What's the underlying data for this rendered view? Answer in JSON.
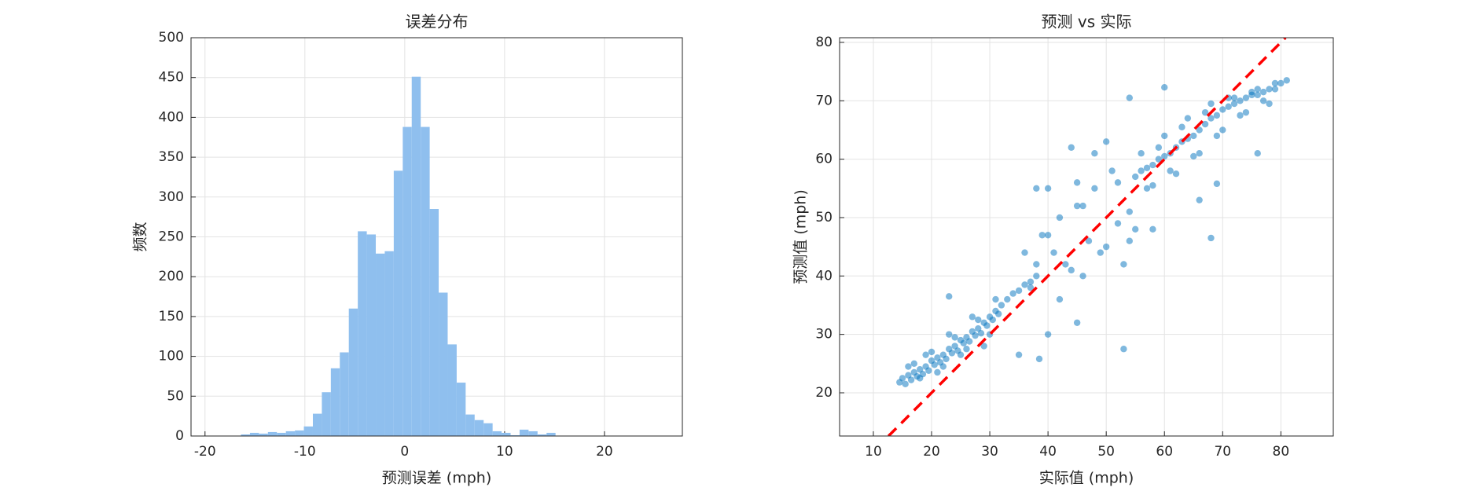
{
  "chart_data": [
    {
      "type": "histogram",
      "title": "误差分布",
      "x_label": "预测误差 (mph)",
      "y_label": "频数",
      "bins": [
        -16.4,
        -15.5,
        -14.6,
        -13.7,
        -12.8,
        -11.9,
        -11.0,
        -10.1,
        -9.2,
        -8.3,
        -7.4,
        -6.5,
        -5.6,
        -4.7,
        -3.8,
        -2.9,
        -2.0,
        -1.1,
        -0.2,
        0.7,
        1.6,
        2.5,
        3.4,
        4.3,
        5.2,
        6.1,
        7.0,
        7.9,
        8.8,
        9.7,
        10.6,
        11.5,
        12.4,
        13.3,
        14.2,
        15.1,
        16.0
      ],
      "values": [
        2,
        4,
        3,
        5,
        4,
        6,
        7,
        12,
        28,
        55,
        85,
        105,
        160,
        257,
        253,
        229,
        232,
        333,
        388,
        451,
        388,
        285,
        180,
        115,
        67,
        27,
        20,
        16,
        6,
        4,
        1,
        8,
        6,
        2,
        4,
        0
      ],
      "color": "#8fbfee",
      "xlim": [
        -21.4,
        27.8
      ],
      "xticks": [
        -20,
        -10,
        0,
        10,
        20
      ],
      "ylim": [
        0,
        500
      ],
      "yticks": [
        0,
        50,
        100,
        150,
        200,
        250,
        300,
        350,
        400,
        450,
        500
      ],
      "grid": true
    },
    {
      "type": "scatter",
      "title": "预测 vs 实际",
      "x_label": "实际值 (mph)",
      "y_label": "预测值 (mph)",
      "x": [
        14.5,
        15,
        15.5,
        16,
        16.5,
        17,
        17.5,
        18,
        18.5,
        19,
        19.5,
        20,
        20.5,
        21,
        21.5,
        22,
        22.5,
        23,
        23.5,
        24,
        24.5,
        25,
        25.5,
        26,
        26.5,
        27,
        27.5,
        28,
        28.5,
        29,
        29.5,
        30,
        30.5,
        31,
        31.5,
        32,
        33,
        34,
        35,
        36,
        37,
        38,
        16,
        18,
        20,
        22,
        24,
        26,
        28,
        30,
        17,
        19,
        21,
        23,
        25,
        27,
        29,
        31,
        23,
        38.5,
        53,
        45,
        40,
        35,
        36,
        38,
        40,
        42,
        44,
        46,
        48,
        50,
        52,
        54,
        37,
        39,
        41,
        43,
        45,
        47,
        49,
        51,
        53,
        55,
        40,
        44,
        48,
        52,
        38,
        42,
        46,
        50,
        54,
        45,
        55,
        56,
        57,
        58,
        59,
        60,
        61,
        62,
        63,
        64,
        65,
        66,
        67,
        68,
        69,
        70,
        71,
        72,
        73,
        74,
        75,
        76,
        77,
        78,
        79,
        80,
        81,
        56,
        58,
        60,
        62,
        64,
        66,
        68,
        70,
        72,
        74,
        76,
        78,
        57,
        59,
        61,
        63,
        65,
        67,
        69,
        71,
        73,
        75,
        77,
        79,
        54,
        60,
        69,
        68,
        76,
        58,
        66
      ],
      "y": [
        21.8,
        22.5,
        21.5,
        23,
        22.2,
        23.5,
        22.8,
        24,
        23.2,
        24.5,
        23.8,
        25.5,
        24.8,
        26,
        25.2,
        26.5,
        25.8,
        27.5,
        26.8,
        28,
        27.2,
        29,
        28.5,
        29.5,
        28.8,
        30.5,
        29.8,
        31,
        30.2,
        32,
        31.5,
        33,
        32.5,
        34,
        33.5,
        35,
        36,
        37,
        37.5,
        38.5,
        39,
        40,
        24.5,
        22.5,
        27,
        24.5,
        29.5,
        27.5,
        32.5,
        30,
        25,
        26.5,
        23.5,
        30,
        26.5,
        33,
        28,
        36,
        36.5,
        25.8,
        27.5,
        32,
        30,
        26.5,
        44,
        42,
        47,
        50,
        41,
        52,
        55,
        45,
        56,
        51,
        38,
        47,
        44,
        42,
        52,
        46,
        44,
        58,
        42,
        48,
        55,
        62,
        61,
        49,
        55,
        36,
        40,
        63,
        46,
        56,
        57,
        58,
        58.5,
        59,
        60,
        60.5,
        61,
        62,
        63,
        63.5,
        64,
        65,
        66,
        67,
        67.5,
        68.5,
        69,
        69.5,
        70,
        70.5,
        71,
        71,
        71.5,
        72,
        72,
        73,
        73.5,
        61,
        55.5,
        64,
        57.5,
        67,
        61,
        69.5,
        65,
        70.5,
        68,
        72,
        69.5,
        55,
        62,
        58,
        65.5,
        60.5,
        68,
        64,
        70.5,
        67.5,
        71.5,
        70,
        73,
        70.5,
        72.3,
        55.8,
        46.5,
        61,
        48,
        53
      ],
      "color": "#0072bd",
      "identity_line": true,
      "identity_color": "#ff0000",
      "xlim": [
        4.2,
        89
      ],
      "xticks": [
        10,
        20,
        30,
        40,
        50,
        60,
        70,
        80
      ],
      "ylim": [
        12.6,
        80.8
      ],
      "yticks": [
        20,
        30,
        40,
        50,
        60,
        70,
        80
      ],
      "grid": true
    }
  ]
}
